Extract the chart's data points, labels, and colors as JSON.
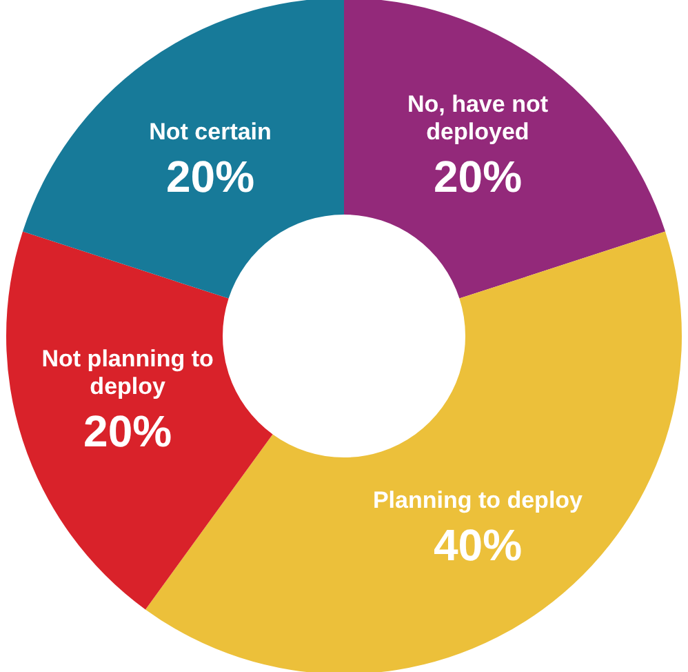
{
  "chart_data": {
    "type": "donut",
    "categories": [
      "No, have not deployed",
      "Planning to deploy",
      "Not planning to deploy",
      "Not certain"
    ],
    "values": [
      20,
      40,
      20,
      20
    ],
    "value_labels": [
      "20%",
      "40%",
      "20%",
      "20%"
    ],
    "colors": [
      "#93297a",
      "#ecc03a",
      "#d9222a",
      "#177a99"
    ]
  }
}
